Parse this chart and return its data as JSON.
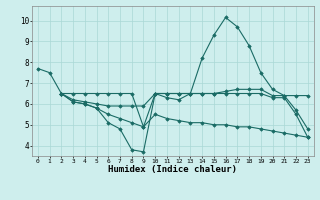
{
  "xlabel": "Humidex (Indice chaleur)",
  "background_color": "#ceeeed",
  "grid_color": "#aad8d6",
  "line_color": "#1a6b65",
  "xlim": [
    -0.5,
    23.5
  ],
  "ylim": [
    3.5,
    10.7
  ],
  "xticks": [
    0,
    1,
    2,
    3,
    4,
    5,
    6,
    7,
    8,
    9,
    10,
    11,
    12,
    13,
    14,
    15,
    16,
    17,
    18,
    19,
    20,
    21,
    22,
    23
  ],
  "yticks": [
    4,
    5,
    6,
    7,
    8,
    9,
    10
  ],
  "lines": [
    {
      "x": [
        0,
        1,
        2,
        3,
        4,
        5,
        6,
        7,
        8,
        9,
        10,
        11,
        12,
        13,
        14,
        15,
        16,
        17,
        18,
        19,
        20,
        21,
        22,
        23
      ],
      "y": [
        7.7,
        7.5,
        6.5,
        6.1,
        6.0,
        5.8,
        5.1,
        4.8,
        3.8,
        3.7,
        6.5,
        6.3,
        6.2,
        6.5,
        8.2,
        9.3,
        10.15,
        9.7,
        8.8,
        7.5,
        6.7,
        6.4,
        5.7,
        4.8
      ]
    },
    {
      "x": [
        2,
        3,
        4,
        5,
        6,
        7,
        8,
        9,
        10,
        11,
        12,
        13,
        14,
        15,
        16,
        17,
        18,
        19,
        20,
        21,
        22,
        23
      ],
      "y": [
        6.5,
        6.5,
        6.5,
        6.5,
        6.5,
        6.5,
        6.5,
        4.9,
        6.5,
        6.5,
        6.5,
        6.5,
        6.5,
        6.5,
        6.6,
        6.7,
        6.7,
        6.7,
        6.4,
        6.4,
        6.4,
        6.4
      ]
    },
    {
      "x": [
        2,
        3,
        4,
        5,
        6,
        7,
        8,
        9,
        10,
        11,
        12,
        13,
        14,
        15,
        16,
        17,
        18,
        19,
        20,
        21,
        22,
        23
      ],
      "y": [
        6.5,
        6.2,
        6.1,
        6.0,
        5.9,
        5.9,
        5.9,
        5.9,
        6.5,
        6.5,
        6.5,
        6.5,
        6.5,
        6.5,
        6.5,
        6.5,
        6.5,
        6.5,
        6.3,
        6.3,
        5.5,
        4.4
      ]
    },
    {
      "x": [
        2,
        3,
        4,
        5,
        6,
        7,
        8,
        9,
        10,
        11,
        12,
        13,
        14,
        15,
        16,
        17,
        18,
        19,
        20,
        21,
        22,
        23
      ],
      "y": [
        6.5,
        6.1,
        6.0,
        5.8,
        5.5,
        5.3,
        5.1,
        4.9,
        5.5,
        5.3,
        5.2,
        5.1,
        5.1,
        5.0,
        5.0,
        4.9,
        4.9,
        4.8,
        4.7,
        4.6,
        4.5,
        4.4
      ]
    }
  ]
}
